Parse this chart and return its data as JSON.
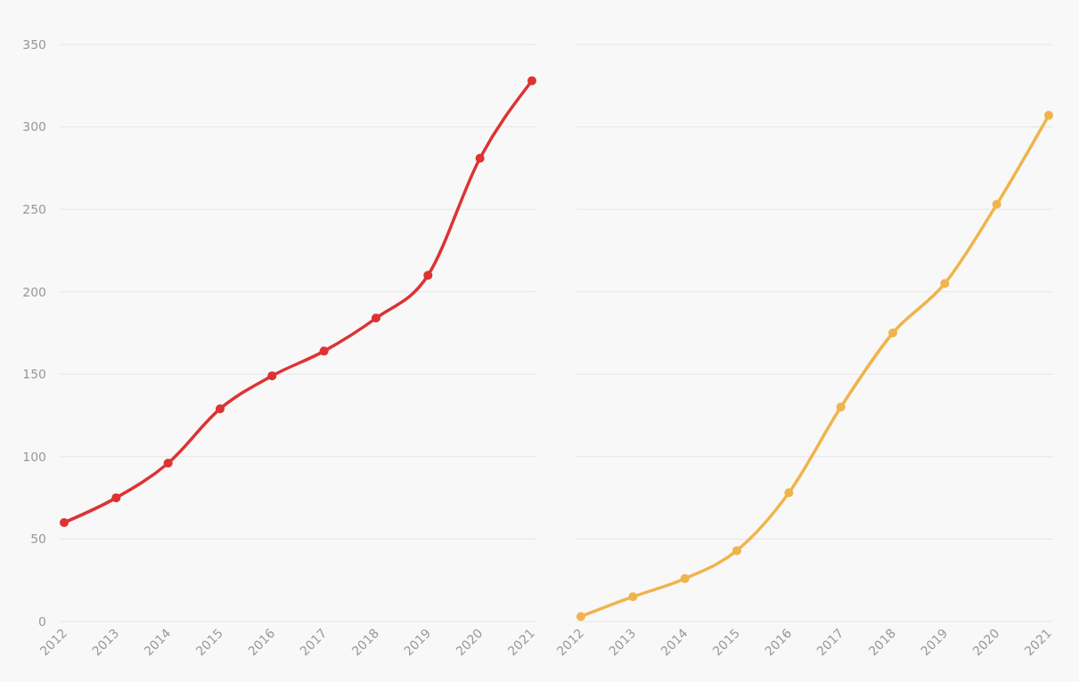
{
  "chart_data": [
    {
      "type": "line",
      "categories": [
        "2012",
        "2013",
        "2014",
        "2015",
        "2016",
        "2017",
        "2018",
        "2019",
        "2020",
        "2021"
      ],
      "series": [
        {
          "color": "#dd3333",
          "values": [
            60,
            75,
            96,
            129,
            149,
            164,
            184,
            210,
            281,
            328
          ]
        }
      ],
      "ylim": [
        0,
        350
      ],
      "yticks": [
        0,
        50,
        100,
        150,
        200,
        250,
        300,
        350
      ],
      "grid": "y",
      "marker": "circle",
      "line_style": "solid"
    },
    {
      "type": "line",
      "categories": [
        "2012",
        "2013",
        "2014",
        "2015",
        "2016",
        "2017",
        "2018",
        "2019",
        "2020",
        "2021"
      ],
      "series": [
        {
          "color": "#f0b44c",
          "values": [
            3,
            15,
            26,
            43,
            78,
            130,
            175,
            205,
            253,
            307
          ]
        }
      ],
      "ylim": [
        0,
        350
      ],
      "yticks": [
        0,
        50,
        100,
        150,
        200,
        250,
        300,
        350
      ],
      "grid": "y",
      "marker": "circle",
      "line_style": "solid",
      "tick_labels": "x"
    }
  ]
}
